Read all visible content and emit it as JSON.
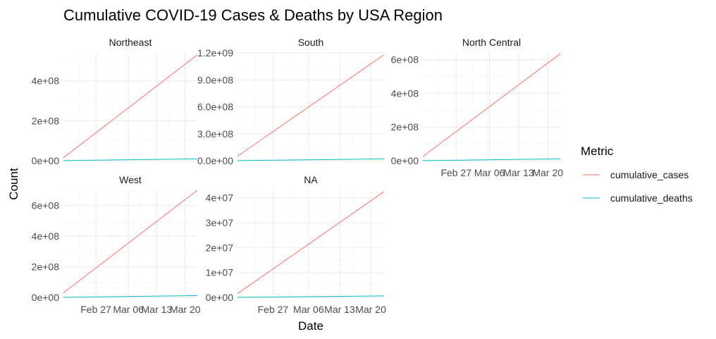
{
  "chart_data": {
    "type": "line",
    "title": "Cumulative COVID-19 Cases & Deaths by USA Region",
    "xlabel": "Date",
    "ylabel": "Count",
    "x_ticks": [
      "Feb 27",
      "Mar 06",
      "Mar 13",
      "Mar 20"
    ],
    "x_range": [
      "2020-02-19",
      "2020-03-23"
    ],
    "legend": {
      "title": "Metric",
      "position": "right",
      "entries": [
        {
          "label": "cumulative_cases",
          "color": "#F8766D"
        },
        {
          "label": "cumulative_deaths",
          "color": "#00BFC4"
        }
      ]
    },
    "facets": [
      {
        "name": "Northeast",
        "ylim": [
          0,
          540000000
        ],
        "y_ticks": [
          0,
          200000000,
          400000000
        ],
        "y_tick_labels": [
          "0e+00",
          "2e+08",
          "4e+08"
        ],
        "series": [
          {
            "name": "cumulative_cases",
            "x": [
              "2020-02-19",
              "2020-03-23"
            ],
            "y": [
              15000000,
              530000000
            ]
          },
          {
            "name": "cumulative_deaths",
            "x": [
              "2020-02-19",
              "2020-03-23"
            ],
            "y": [
              300000,
              9000000
            ]
          }
        ]
      },
      {
        "name": "South",
        "ylim": [
          0,
          1200000000
        ],
        "y_ticks": [
          0,
          300000000,
          600000000,
          900000000,
          1200000000
        ],
        "y_tick_labels": [
          "0.0e+00",
          "3.0e+08",
          "6.0e+08",
          "9.0e+08",
          "1.2e+09"
        ],
        "series": [
          {
            "name": "cumulative_cases",
            "x": [
              "2020-02-19",
              "2020-03-23"
            ],
            "y": [
              50000000,
              1180000000
            ]
          },
          {
            "name": "cumulative_deaths",
            "x": [
              "2020-02-19",
              "2020-03-23"
            ],
            "y": [
              1000000,
              20000000
            ]
          }
        ]
      },
      {
        "name": "North Central",
        "ylim": [
          0,
          640000000
        ],
        "y_ticks": [
          0,
          200000000,
          400000000,
          600000000
        ],
        "y_tick_labels": [
          "0e+00",
          "2e+08",
          "4e+08",
          "6e+08"
        ],
        "series": [
          {
            "name": "cumulative_cases",
            "x": [
              "2020-02-19",
              "2020-03-23"
            ],
            "y": [
              25000000,
              635000000
            ]
          },
          {
            "name": "cumulative_deaths",
            "x": [
              "2020-02-19",
              "2020-03-23"
            ],
            "y": [
              500000,
              11000000
            ]
          }
        ]
      },
      {
        "name": "West",
        "ylim": [
          0,
          700000000
        ],
        "y_ticks": [
          0,
          200000000,
          400000000,
          600000000
        ],
        "y_tick_labels": [
          "0e+00",
          "2e+08",
          "4e+08",
          "6e+08"
        ],
        "series": [
          {
            "name": "cumulative_cases",
            "x": [
              "2020-02-19",
              "2020-03-23"
            ],
            "y": [
              30000000,
              700000000
            ]
          },
          {
            "name": "cumulative_deaths",
            "x": [
              "2020-02-19",
              "2020-03-23"
            ],
            "y": [
              500000,
              12000000
            ]
          }
        ]
      },
      {
        "name": "NA",
        "ylim": [
          0,
          43000000
        ],
        "y_ticks": [
          0,
          10000000,
          20000000,
          30000000,
          40000000
        ],
        "y_tick_labels": [
          "0e+00",
          "1e+07",
          "2e+07",
          "3e+07",
          "4e+07"
        ],
        "series": [
          {
            "name": "cumulative_cases",
            "x": [
              "2020-02-19",
              "2020-03-23"
            ],
            "y": [
              1500000,
              42500000
            ]
          },
          {
            "name": "cumulative_deaths",
            "x": [
              "2020-02-19",
              "2020-03-23"
            ],
            "y": [
              20000,
              600000
            ]
          }
        ]
      }
    ],
    "grid": true
  }
}
